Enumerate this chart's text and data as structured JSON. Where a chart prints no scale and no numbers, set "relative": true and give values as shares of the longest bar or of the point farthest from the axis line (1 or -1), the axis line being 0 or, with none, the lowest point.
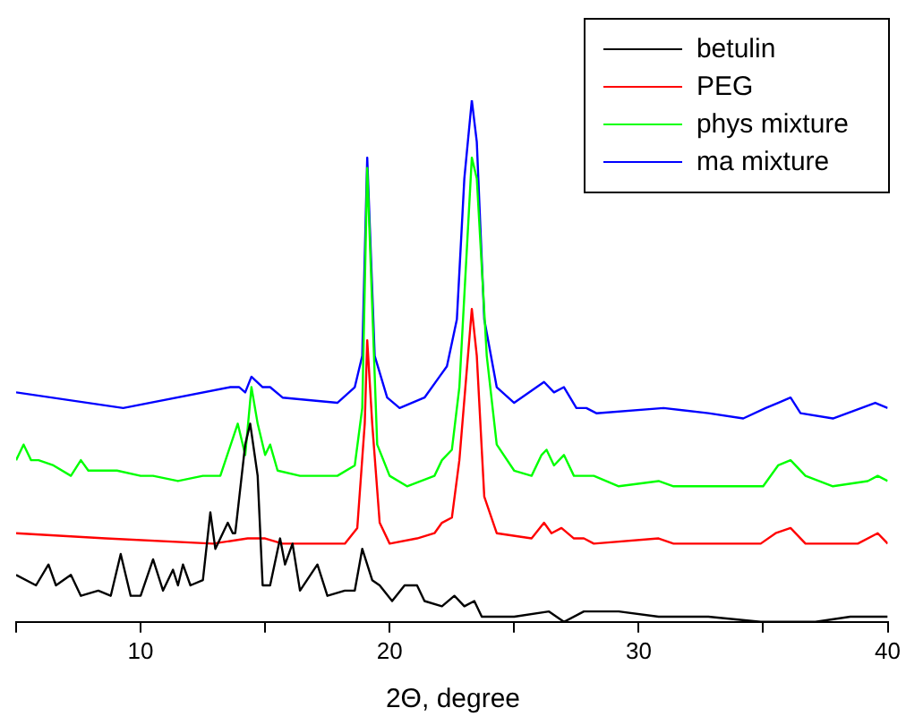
{
  "chart_data": {
    "type": "line",
    "relative": true,
    "xlabel": "2Θ, degree",
    "xlim": [
      5,
      40
    ],
    "xticks": [
      {
        "value": 5,
        "label": null
      },
      10,
      {
        "value": 15,
        "label": null
      },
      20,
      {
        "value": 25,
        "label": null
      },
      30,
      {
        "value": 35,
        "label": null
      },
      40
    ],
    "tick_labels": "x",
    "grid": false,
    "legend": "top right",
    "marker": "none",
    "line_style": "solid",
    "series": [
      {
        "name": "betulin",
        "color": "#000000",
        "x": [
          5,
          5.8,
          6.3,
          6.6,
          7.2,
          7.6,
          8.3,
          8.8,
          9.2,
          9.6,
          10,
          10.5,
          10.9,
          11.3,
          11.5,
          11.7,
          12,
          12.5,
          12.8,
          13,
          13.5,
          13.7,
          13.8,
          14.2,
          14.4,
          14.7,
          14.9,
          15.2,
          15.6,
          15.8,
          16.1,
          16.4,
          17.1,
          17.5,
          18.2,
          18.6,
          18.9,
          19.3,
          19.6,
          20.1,
          20.6,
          21.1,
          21.4,
          22.1,
          22.6,
          23,
          23.4,
          23.7,
          25,
          26.4,
          27,
          27.8,
          29.2,
          30.8,
          32.8,
          34.9,
          37.1,
          38.5,
          40
        ],
        "values": [
          0.09,
          0.07,
          0.11,
          0.07,
          0.09,
          0.05,
          0.06,
          0.05,
          0.13,
          0.05,
          0.05,
          0.12,
          0.06,
          0.1,
          0.07,
          0.11,
          0.07,
          0.08,
          0.21,
          0.14,
          0.19,
          0.17,
          0.17,
          0.34,
          0.38,
          0.28,
          0.07,
          0.07,
          0.16,
          0.11,
          0.15,
          0.06,
          0.11,
          0.05,
          0.06,
          0.06,
          0.14,
          0.08,
          0.07,
          0.04,
          0.07,
          0.07,
          0.04,
          0.03,
          0.05,
          0.03,
          0.04,
          0.01,
          0.01,
          0.02,
          0,
          0.02,
          0.02,
          0.01,
          0.01,
          0,
          0,
          0.01,
          0.01
        ]
      },
      {
        "name": "PEG",
        "color": "#ff0000",
        "x": [
          5,
          8.6,
          12.9,
          14.3,
          15,
          15.7,
          18.2,
          18.7,
          19,
          19.1,
          19.3,
          19.6,
          20,
          21.1,
          21.8,
          22.1,
          22.5,
          22.8,
          23.3,
          23.5,
          23.8,
          24.3,
          25.7,
          26.2,
          26.5,
          26.9,
          27.4,
          27.8,
          28.2,
          30.8,
          31.4,
          34.9,
          35.5,
          36.1,
          36.7,
          38.8,
          39.6,
          40
        ],
        "values": [
          0.17,
          0.16,
          0.15,
          0.16,
          0.16,
          0.15,
          0.15,
          0.18,
          0.38,
          0.54,
          0.38,
          0.19,
          0.15,
          0.16,
          0.17,
          0.19,
          0.2,
          0.31,
          0.6,
          0.51,
          0.24,
          0.17,
          0.16,
          0.19,
          0.17,
          0.18,
          0.16,
          0.16,
          0.15,
          0.16,
          0.15,
          0.15,
          0.17,
          0.18,
          0.15,
          0.15,
          0.17,
          0.15
        ]
      },
      {
        "name": "phys mixture",
        "color": "#00ff00",
        "x": [
          5,
          5.3,
          5.6,
          5.9,
          6.5,
          7.2,
          7.6,
          7.9,
          8.8,
          9.05,
          10,
          10.5,
          11.5,
          12.5,
          13.2,
          13.9,
          14.2,
          14.45,
          14.7,
          15,
          15.2,
          15.5,
          16.4,
          17.9,
          18.6,
          18.9,
          19.1,
          19.5,
          20,
          20.7,
          21.8,
          22.1,
          22.5,
          22.8,
          23.3,
          23.5,
          23.9,
          24.3,
          25,
          25.7,
          26.1,
          26.3,
          26.6,
          27,
          27.4,
          27.8,
          28.2,
          29.2,
          30.8,
          31.4,
          32.8,
          34.6,
          35,
          35.6,
          36.1,
          36.7,
          37.8,
          39.2,
          39.6,
          40
        ],
        "values": [
          0.31,
          0.34,
          0.31,
          0.31,
          0.3,
          0.28,
          0.31,
          0.29,
          0.29,
          0.29,
          0.28,
          0.28,
          0.27,
          0.28,
          0.28,
          0.38,
          0.32,
          0.45,
          0.38,
          0.32,
          0.34,
          0.29,
          0.28,
          0.28,
          0.3,
          0.41,
          0.87,
          0.34,
          0.28,
          0.26,
          0.28,
          0.31,
          0.33,
          0.45,
          0.89,
          0.85,
          0.51,
          0.34,
          0.29,
          0.28,
          0.32,
          0.33,
          0.3,
          0.32,
          0.28,
          0.28,
          0.28,
          0.26,
          0.27,
          0.26,
          0.26,
          0.26,
          0.26,
          0.3,
          0.31,
          0.28,
          0.26,
          0.27,
          0.28,
          0.27
        ]
      },
      {
        "name": "ma mixture",
        "color": "#0000ff",
        "x": [
          5,
          9.3,
          13.6,
          13.96,
          14.2,
          14.45,
          14.9,
          15.2,
          15.7,
          17.9,
          18.6,
          18.9,
          19.1,
          19.4,
          19.9,
          20.4,
          21.4,
          22,
          22.3,
          22.7,
          23,
          23.3,
          23.5,
          23.8,
          24.3,
          25,
          26.2,
          26.6,
          27,
          27.5,
          27.9,
          28.3,
          31,
          32.8,
          34.2,
          35.1,
          35.6,
          36.1,
          36.5,
          37.8,
          39.5,
          40
        ],
        "values": [
          0.44,
          0.41,
          0.45,
          0.45,
          0.44,
          0.47,
          0.45,
          0.45,
          0.43,
          0.42,
          0.45,
          0.51,
          0.89,
          0.51,
          0.43,
          0.41,
          0.43,
          0.47,
          0.49,
          0.58,
          0.85,
          1,
          0.92,
          0.58,
          0.45,
          0.42,
          0.46,
          0.44,
          0.45,
          0.41,
          0.41,
          0.4,
          0.41,
          0.4,
          0.39,
          0.41,
          0.42,
          0.43,
          0.4,
          0.39,
          0.42,
          0.41
        ]
      }
    ]
  }
}
